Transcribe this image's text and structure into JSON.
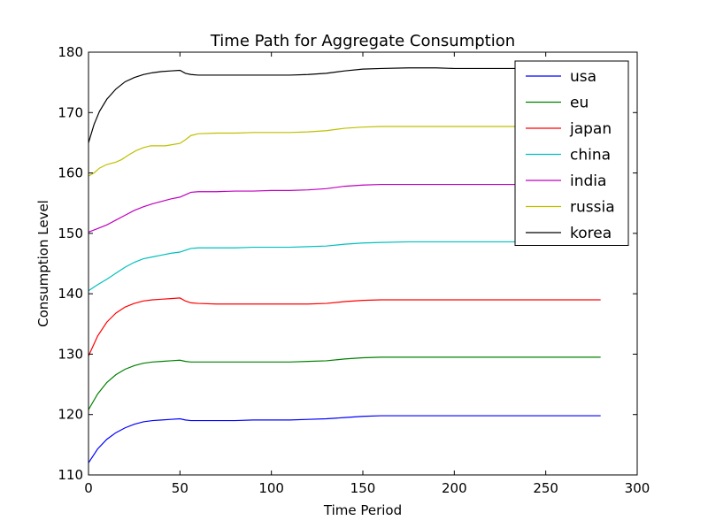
{
  "chart_data": {
    "type": "line",
    "title": "Time Path for Aggregate Consumption",
    "xlabel": "Time Period",
    "ylabel": "Consumption Level",
    "xlim": [
      0,
      300
    ],
    "ylim": [
      110,
      180
    ],
    "xticks": [
      0,
      50,
      100,
      150,
      200,
      250,
      300
    ],
    "yticks": [
      110,
      120,
      130,
      140,
      150,
      160,
      170,
      180
    ],
    "grid": false,
    "legend_position": "top-right",
    "series": [
      {
        "name": "usa",
        "color": "#0000ff",
        "points": [
          [
            0,
            112.0
          ],
          [
            5,
            114.3
          ],
          [
            10,
            115.9
          ],
          [
            15,
            117.0
          ],
          [
            20,
            117.8
          ],
          [
            25,
            118.4
          ],
          [
            30,
            118.8
          ],
          [
            35,
            119.0
          ],
          [
            40,
            119.1
          ],
          [
            45,
            119.2
          ],
          [
            50,
            119.3
          ],
          [
            53,
            119.1
          ],
          [
            56,
            119.0
          ],
          [
            60,
            119.0
          ],
          [
            70,
            119.0
          ],
          [
            80,
            119.0
          ],
          [
            90,
            119.1
          ],
          [
            100,
            119.1
          ],
          [
            110,
            119.1
          ],
          [
            120,
            119.2
          ],
          [
            130,
            119.3
          ],
          [
            140,
            119.5
          ],
          [
            150,
            119.7
          ],
          [
            160,
            119.8
          ],
          [
            175,
            119.8
          ],
          [
            190,
            119.8
          ],
          [
            200,
            119.8
          ],
          [
            220,
            119.8
          ],
          [
            240,
            119.8
          ],
          [
            260,
            119.8
          ],
          [
            280,
            119.8
          ]
        ]
      },
      {
        "name": "eu",
        "color": "#008000",
        "points": [
          [
            0,
            120.8
          ],
          [
            5,
            123.4
          ],
          [
            10,
            125.3
          ],
          [
            15,
            126.6
          ],
          [
            20,
            127.5
          ],
          [
            25,
            128.1
          ],
          [
            30,
            128.5
          ],
          [
            35,
            128.7
          ],
          [
            40,
            128.8
          ],
          [
            45,
            128.9
          ],
          [
            50,
            129.0
          ],
          [
            53,
            128.8
          ],
          [
            56,
            128.7
          ],
          [
            60,
            128.7
          ],
          [
            70,
            128.7
          ],
          [
            80,
            128.7
          ],
          [
            90,
            128.7
          ],
          [
            100,
            128.7
          ],
          [
            110,
            128.7
          ],
          [
            120,
            128.8
          ],
          [
            130,
            128.9
          ],
          [
            140,
            129.2
          ],
          [
            150,
            129.4
          ],
          [
            160,
            129.5
          ],
          [
            175,
            129.5
          ],
          [
            190,
            129.5
          ],
          [
            200,
            129.5
          ],
          [
            220,
            129.5
          ],
          [
            240,
            129.5
          ],
          [
            260,
            129.5
          ],
          [
            280,
            129.5
          ]
        ]
      },
      {
        "name": "japan",
        "color": "#ff0000",
        "points": [
          [
            0,
            129.7
          ],
          [
            5,
            133.0
          ],
          [
            10,
            135.3
          ],
          [
            15,
            136.8
          ],
          [
            20,
            137.8
          ],
          [
            25,
            138.4
          ],
          [
            30,
            138.8
          ],
          [
            35,
            139.0
          ],
          [
            40,
            139.1
          ],
          [
            45,
            139.2
          ],
          [
            50,
            139.3
          ],
          [
            53,
            138.8
          ],
          [
            56,
            138.5
          ],
          [
            60,
            138.4
          ],
          [
            70,
            138.3
          ],
          [
            80,
            138.3
          ],
          [
            90,
            138.3
          ],
          [
            100,
            138.3
          ],
          [
            110,
            138.3
          ],
          [
            120,
            138.3
          ],
          [
            130,
            138.4
          ],
          [
            140,
            138.7
          ],
          [
            150,
            138.9
          ],
          [
            160,
            139.0
          ],
          [
            175,
            139.0
          ],
          [
            190,
            139.0
          ],
          [
            200,
            139.0
          ],
          [
            220,
            139.0
          ],
          [
            240,
            139.0
          ],
          [
            260,
            139.0
          ],
          [
            280,
            139.0
          ]
        ]
      },
      {
        "name": "china",
        "color": "#00bfbf",
        "points": [
          [
            0,
            140.5
          ],
          [
            5,
            141.5
          ],
          [
            10,
            142.4
          ],
          [
            15,
            143.4
          ],
          [
            20,
            144.4
          ],
          [
            25,
            145.2
          ],
          [
            30,
            145.8
          ],
          [
            35,
            146.1
          ],
          [
            40,
            146.4
          ],
          [
            45,
            146.7
          ],
          [
            50,
            146.9
          ],
          [
            53,
            147.2
          ],
          [
            56,
            147.5
          ],
          [
            60,
            147.6
          ],
          [
            70,
            147.6
          ],
          [
            80,
            147.6
          ],
          [
            90,
            147.7
          ],
          [
            100,
            147.7
          ],
          [
            110,
            147.7
          ],
          [
            120,
            147.8
          ],
          [
            130,
            147.9
          ],
          [
            140,
            148.2
          ],
          [
            150,
            148.4
          ],
          [
            160,
            148.5
          ],
          [
            175,
            148.6
          ],
          [
            190,
            148.6
          ],
          [
            200,
            148.6
          ],
          [
            220,
            148.6
          ],
          [
            240,
            148.6
          ],
          [
            260,
            148.6
          ],
          [
            280,
            148.6
          ]
        ]
      },
      {
        "name": "india",
        "color": "#bf00bf",
        "points": [
          [
            0,
            150.2
          ],
          [
            5,
            150.8
          ],
          [
            10,
            151.4
          ],
          [
            15,
            152.2
          ],
          [
            20,
            153.0
          ],
          [
            25,
            153.8
          ],
          [
            30,
            154.4
          ],
          [
            35,
            154.9
          ],
          [
            40,
            155.3
          ],
          [
            45,
            155.7
          ],
          [
            50,
            156.0
          ],
          [
            53,
            156.4
          ],
          [
            56,
            156.8
          ],
          [
            60,
            156.9
          ],
          [
            70,
            156.9
          ],
          [
            80,
            157.0
          ],
          [
            90,
            157.0
          ],
          [
            100,
            157.1
          ],
          [
            110,
            157.1
          ],
          [
            120,
            157.2
          ],
          [
            130,
            157.4
          ],
          [
            140,
            157.8
          ],
          [
            150,
            158.0
          ],
          [
            160,
            158.1
          ],
          [
            175,
            158.1
          ],
          [
            190,
            158.1
          ],
          [
            200,
            158.1
          ],
          [
            220,
            158.1
          ],
          [
            240,
            158.1
          ],
          [
            260,
            158.1
          ],
          [
            280,
            158.1
          ]
        ]
      },
      {
        "name": "russia",
        "color": "#bfbf00",
        "points": [
          [
            0,
            159.5
          ],
          [
            3,
            160.0
          ],
          [
            6,
            160.8
          ],
          [
            10,
            161.4
          ],
          [
            15,
            161.8
          ],
          [
            18,
            162.2
          ],
          [
            22,
            163.0
          ],
          [
            26,
            163.7
          ],
          [
            30,
            164.2
          ],
          [
            34,
            164.5
          ],
          [
            38,
            164.5
          ],
          [
            42,
            164.5
          ],
          [
            46,
            164.7
          ],
          [
            50,
            164.9
          ],
          [
            53,
            165.5
          ],
          [
            56,
            166.2
          ],
          [
            60,
            166.5
          ],
          [
            70,
            166.6
          ],
          [
            80,
            166.6
          ],
          [
            90,
            166.7
          ],
          [
            100,
            166.7
          ],
          [
            110,
            166.7
          ],
          [
            120,
            166.8
          ],
          [
            130,
            167.0
          ],
          [
            140,
            167.4
          ],
          [
            150,
            167.6
          ],
          [
            160,
            167.7
          ],
          [
            175,
            167.7
          ],
          [
            190,
            167.7
          ],
          [
            200,
            167.7
          ],
          [
            220,
            167.7
          ],
          [
            240,
            167.7
          ],
          [
            260,
            167.7
          ],
          [
            280,
            167.7
          ]
        ]
      },
      {
        "name": "korea",
        "color": "#000000",
        "points": [
          [
            0,
            165.0
          ],
          [
            3,
            168.0
          ],
          [
            6,
            170.2
          ],
          [
            10,
            172.2
          ],
          [
            15,
            173.9
          ],
          [
            20,
            175.1
          ],
          [
            25,
            175.8
          ],
          [
            30,
            176.3
          ],
          [
            35,
            176.6
          ],
          [
            40,
            176.8
          ],
          [
            45,
            176.9
          ],
          [
            50,
            177.0
          ],
          [
            53,
            176.5
          ],
          [
            56,
            176.3
          ],
          [
            60,
            176.2
          ],
          [
            70,
            176.2
          ],
          [
            80,
            176.2
          ],
          [
            90,
            176.2
          ],
          [
            100,
            176.2
          ],
          [
            110,
            176.2
          ],
          [
            120,
            176.3
          ],
          [
            130,
            176.5
          ],
          [
            140,
            176.9
          ],
          [
            150,
            177.2
          ],
          [
            160,
            177.3
          ],
          [
            175,
            177.4
          ],
          [
            190,
            177.4
          ],
          [
            200,
            177.3
          ],
          [
            220,
            177.3
          ],
          [
            240,
            177.3
          ],
          [
            260,
            177.3
          ],
          [
            280,
            177.3
          ]
        ]
      }
    ]
  }
}
